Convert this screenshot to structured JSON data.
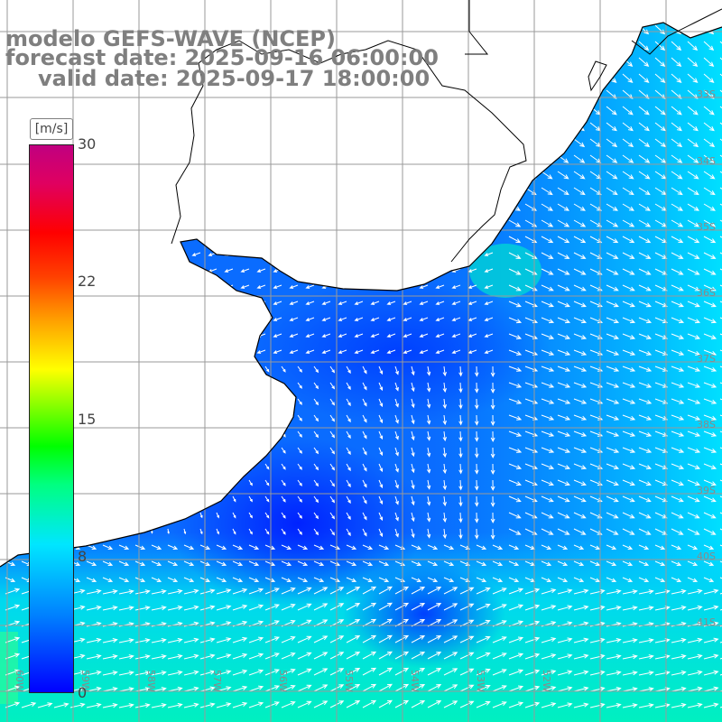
{
  "titles": {
    "model": "modelo GEFS-WAVE (NCEP)",
    "forecast": "forecast date: 2025-09-16 06:00:00",
    "valid": "valid date: 2025-09-17 18:00:00"
  },
  "colorbar": {
    "unit": "[m/s]",
    "ticks": [
      "30",
      "22",
      "15",
      "8",
      "0"
    ]
  },
  "grid_labels": {
    "lat": [
      "33S",
      "34S",
      "35S",
      "36S",
      "37S",
      "38S",
      "39S",
      "40S",
      "41S"
    ],
    "lon": [
      "60W",
      "59W",
      "58W",
      "57W",
      "56W",
      "55W",
      "54W",
      "53W",
      "52W"
    ]
  },
  "map_colors": {
    "land": "#ffffff",
    "coast": "#000000",
    "grid": "#9a9a9a",
    "weak_wind": "#0033ff",
    "medium_wind": "#00a0ff",
    "strong_wind": "#00e8e0",
    "arrows": "#ffffff"
  }
}
